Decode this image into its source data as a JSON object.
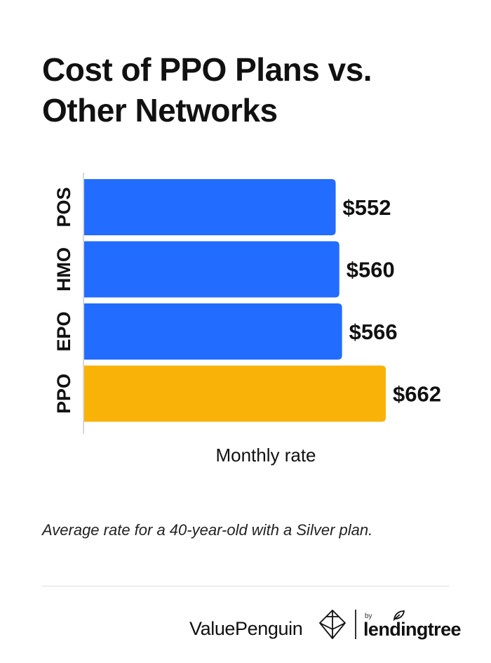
{
  "title_lines": [
    "Cost of PPO Plans vs.",
    "Other Networks"
  ],
  "caption": "Average rate for a 40-year-old with a Silver plan.",
  "chart_data": {
    "type": "bar",
    "orientation": "horizontal",
    "title": "Cost of PPO Plans vs. Other Networks",
    "xlabel": "Monthly rate",
    "ylabel": "",
    "categories": [
      "POS",
      "HMO",
      "EPO",
      "PPO"
    ],
    "values": [
      552,
      560,
      566,
      662
    ],
    "value_labels": [
      "$552",
      "$560",
      "$566",
      "$662"
    ],
    "colors": [
      "#226CFF",
      "#226CFF",
      "#226CFF",
      "#F9B208"
    ],
    "xlim": [
      0,
      662
    ],
    "grid": false,
    "legend": "none"
  },
  "footer": {
    "brand": "ValuePenguin",
    "by": "by",
    "partner": "lendingtree",
    "brand_icon": "valuepenguin-logo-icon",
    "partner_icon": "leaf-icon"
  }
}
